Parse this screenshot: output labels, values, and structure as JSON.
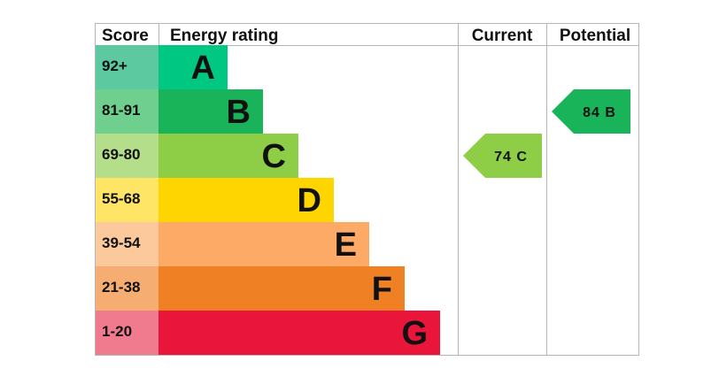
{
  "chart_data": {
    "type": "table",
    "headers": {
      "score": "Score",
      "rating": "Energy rating",
      "current": "Current",
      "potential": "Potential"
    },
    "bands": [
      {
        "score": "92+",
        "letter": "A",
        "color": "#00c781",
        "score_bg": "#5dc9a0"
      },
      {
        "score": "81-91",
        "letter": "B",
        "color": "#19b459",
        "score_bg": "#6ecf8e"
      },
      {
        "score": "69-80",
        "letter": "C",
        "color": "#8dce46",
        "score_bg": "#b4de89"
      },
      {
        "score": "55-68",
        "letter": "D",
        "color": "#ffd500",
        "score_bg": "#ffe566"
      },
      {
        "score": "39-54",
        "letter": "E",
        "color": "#fcaa65",
        "score_bg": "#fcc99c"
      },
      {
        "score": "21-38",
        "letter": "F",
        "color": "#ef8023",
        "score_bg": "#f5ad72"
      },
      {
        "score": "1-20",
        "letter": "G",
        "color": "#e9153b",
        "score_bg": "#f07a8e"
      }
    ],
    "current": {
      "value": 74,
      "letter": "C",
      "label": "74  C",
      "color": "#8dce46"
    },
    "potential": {
      "value": 84,
      "letter": "B",
      "label": "84  B",
      "color": "#19b459"
    }
  }
}
